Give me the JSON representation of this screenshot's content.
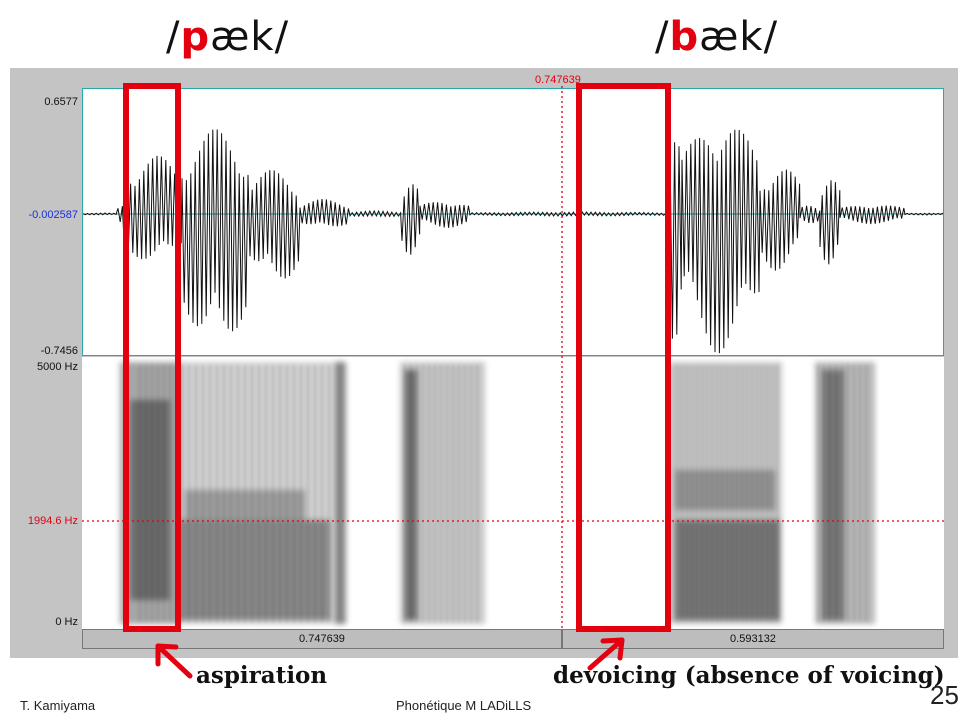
{
  "titles": {
    "left_prefix": "/",
    "left_cons": "p",
    "left_rest": "æk/",
    "right_prefix": "/",
    "right_cons": "b",
    "right_rest": "æk/"
  },
  "waveform": {
    "max_label": "0.6577",
    "mid_label": "-0.002587",
    "min_label": "-0.7456"
  },
  "spectrogram": {
    "top_label": "5000 Hz",
    "cursor_label": "1994.6 Hz",
    "bottom_label": "0 Hz"
  },
  "cursor_time": "0.747639",
  "tiers": {
    "left_duration": "0.747639",
    "right_duration": "0.593132"
  },
  "annotations": {
    "aspiration": "aspiration",
    "devoicing": "devoicing (absence of voicing)"
  },
  "footer": {
    "author": "T. Kamiyama",
    "course": "Phonétique M  LADiLLS",
    "page": "25"
  },
  "colors": {
    "highlight": "#e3000f",
    "waveform_frame": "#2aa7a7",
    "wave_zero": "#1a2fd6"
  }
}
